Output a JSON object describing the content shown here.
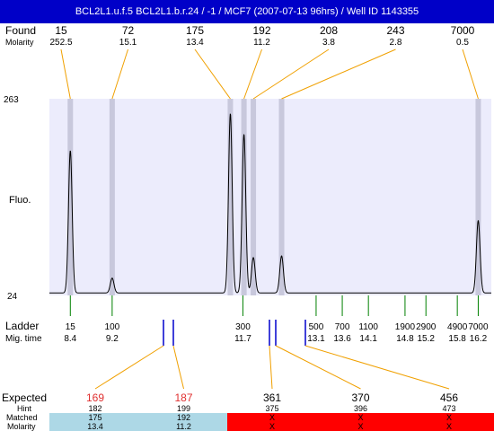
{
  "header": {
    "title": "BCL2L1.u.f.5  BCL2L1.b.r.24 / -1 / MCF7 (2007-07-13 96hrs) / Well ID 1143355"
  },
  "labels": {
    "found": "Found",
    "molarity": "Molarity",
    "fluo": "Fluo.",
    "ladder": "Ladder",
    "mig_time": "Mig. time",
    "expected": "Expected",
    "hint": "Hint",
    "matched": "Matched",
    "molarity_bottom": "Molarity"
  },
  "chart_data": {
    "type": "line",
    "title": "",
    "ylabel": "Fluo.",
    "ylim": [
      24,
      263
    ],
    "y_ticks": [
      "263",
      "24"
    ],
    "found": [
      {
        "size": "15",
        "molarity": "252.5"
      },
      {
        "size": "72",
        "molarity": "15.1"
      },
      {
        "size": "175",
        "molarity": "13.4"
      },
      {
        "size": "192",
        "molarity": "11.2"
      },
      {
        "size": "208",
        "molarity": "3.8"
      },
      {
        "size": "243",
        "molarity": "2.8"
      },
      {
        "size": "7000",
        "molarity": "0.5"
      }
    ],
    "peaks": [
      {
        "time": 8.4,
        "height": 200
      },
      {
        "time": 9.2,
        "height": 45
      },
      {
        "time": 11.46,
        "height": 245
      },
      {
        "time": 11.72,
        "height": 220
      },
      {
        "time": 11.9,
        "height": 70
      },
      {
        "time": 12.44,
        "height": 72
      },
      {
        "time": 16.2,
        "height": 115
      }
    ],
    "ladder": [
      {
        "bp": "15",
        "time": "8.4"
      },
      {
        "bp": "100",
        "time": "9.2"
      },
      {
        "bp": "300",
        "time": "11.7"
      },
      {
        "bp": "500",
        "time": "13.1"
      },
      {
        "bp": "700",
        "time": "13.6"
      },
      {
        "bp": "1100",
        "time": "14.1"
      },
      {
        "bp": "1900",
        "time": "14.8"
      },
      {
        "bp": "2900",
        "time": "15.2"
      },
      {
        "bp": "4900",
        "time": "15.8"
      },
      {
        "bp": "7000",
        "time": "16.2"
      }
    ],
    "expected": [
      {
        "size": "169",
        "hint": "182",
        "matched": "175",
        "molarity": "13.4",
        "status": "matched"
      },
      {
        "size": "187",
        "hint": "199",
        "matched": "192",
        "molarity": "11.2",
        "status": "matched"
      },
      {
        "size": "361",
        "hint": "375",
        "matched": "X",
        "molarity": "X",
        "status": "unmatched"
      },
      {
        "size": "370",
        "hint": "396",
        "matched": "X",
        "molarity": "X",
        "status": "unmatched"
      },
      {
        "size": "456",
        "hint": "473",
        "matched": "X",
        "molarity": "X",
        "status": "unmatched"
      }
    ],
    "colors": {
      "header_bg": "#0000c8",
      "plot_bg": "#ececfc",
      "connector": "#f0a000",
      "expected_matched": "#e03030",
      "marker": "#0000cc",
      "ladder_tick": "#008000",
      "matched_bg": "#add8e6",
      "unmatched_bg": "#ff0000"
    }
  }
}
